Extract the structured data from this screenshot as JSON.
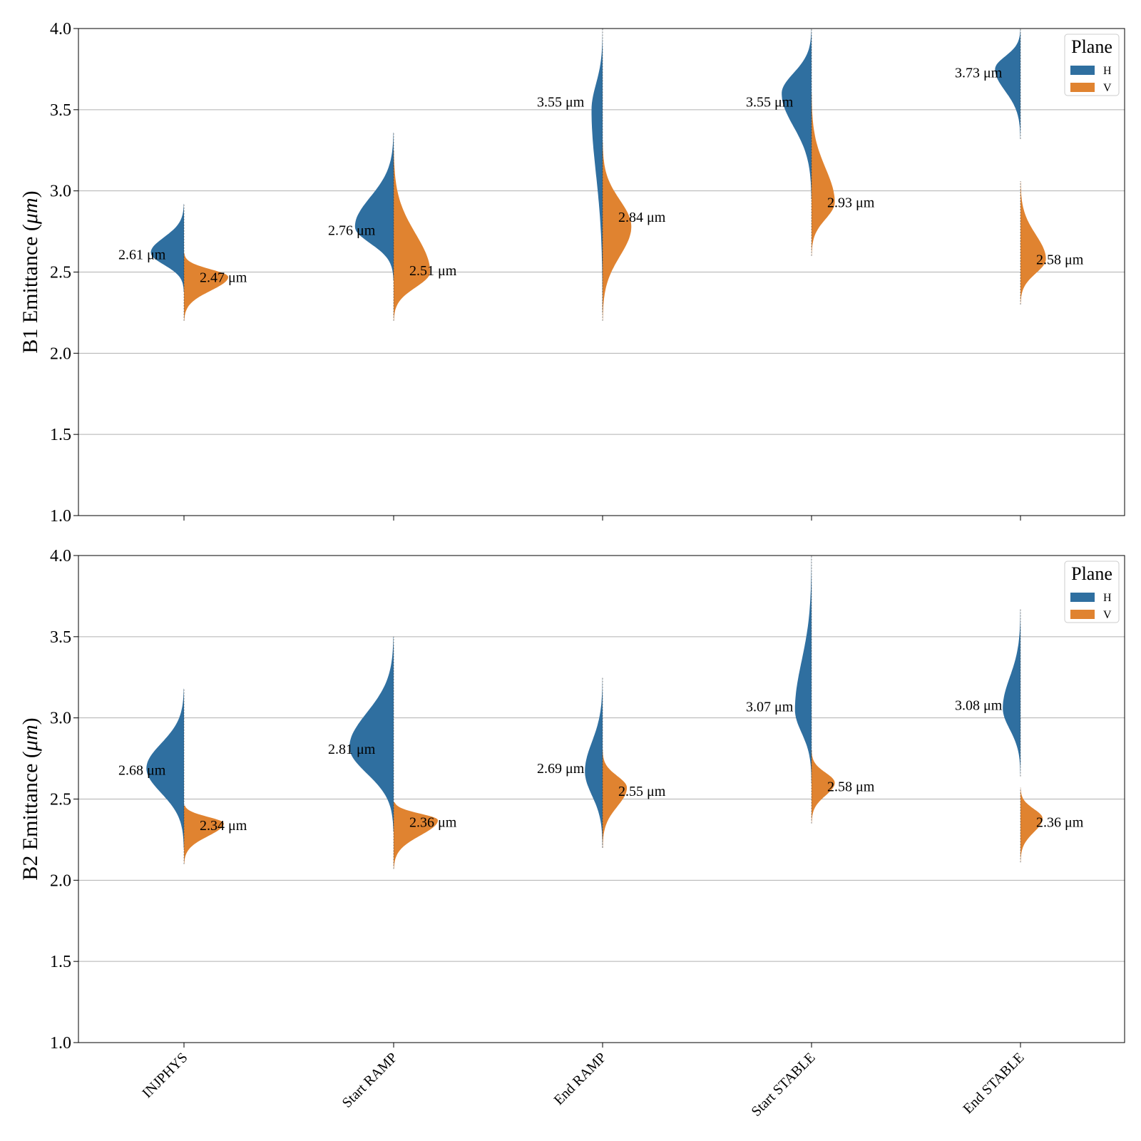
{
  "colors": {
    "H": "#2f6fa0",
    "V": "#e08330",
    "grid": "#b0b0b0",
    "axis": "#000000"
  },
  "chart_data": [
    {
      "type": "violin",
      "panel": "top",
      "ylabel": "B1 Emittance",
      "ylabel_unit": "μm",
      "ylim": [
        1.0,
        4.0
      ],
      "yticks": [
        "1.0",
        "1.5",
        "2.0",
        "2.5",
        "3.0",
        "3.5",
        "4.0"
      ],
      "categories": [
        "INJPHYS",
        "Start RAMP",
        "End RAMP",
        "Start STABLE",
        "End STABLE"
      ],
      "legend": {
        "title": "Plane",
        "placement": "top-right",
        "entries": [
          "H",
          "V"
        ]
      },
      "series": [
        {
          "name": "H",
          "medians": [
            2.61,
            2.76,
            3.55,
            3.55,
            3.73
          ],
          "labels": [
            "2.61 μm",
            "2.76 μm",
            "3.55 μm",
            "3.55 μm",
            "3.73 μm"
          ],
          "ranges": [
            [
              2.38,
              2.92
            ],
            [
              2.45,
              3.36
            ],
            [
              2.25,
              4.0
            ],
            [
              2.95,
              4.0
            ],
            [
              3.32,
              4.0
            ]
          ],
          "peaks": [
            2.62,
            2.78,
            3.5,
            3.6,
            3.75
          ],
          "widths": [
            0.3,
            0.35,
            0.1,
            0.27,
            0.23
          ]
        },
        {
          "name": "V",
          "medians": [
            2.47,
            2.51,
            2.84,
            2.93,
            2.58
          ],
          "labels": [
            "2.47 μm",
            "2.51 μm",
            "2.84 μm",
            "2.93 μm",
            "2.58 μm"
          ],
          "ranges": [
            [
              2.2,
              2.62
            ],
            [
              2.2,
              3.25
            ],
            [
              2.2,
              3.3
            ],
            [
              2.6,
              3.6
            ],
            [
              2.3,
              3.06
            ]
          ],
          "peaks": [
            2.47,
            2.5,
            2.78,
            2.93,
            2.58
          ],
          "widths": [
            0.4,
            0.33,
            0.26,
            0.21,
            0.23
          ]
        }
      ]
    },
    {
      "type": "violin",
      "panel": "bottom",
      "ylabel": "B2 Emittance",
      "ylabel_unit": "μm",
      "ylim": [
        1.0,
        4.0
      ],
      "yticks": [
        "1.0",
        "1.5",
        "2.0",
        "2.5",
        "3.0",
        "3.5",
        "4.0"
      ],
      "categories": [
        "INJPHYS",
        "Start RAMP",
        "End RAMP",
        "Start STABLE",
        "End STABLE"
      ],
      "legend": {
        "title": "Plane",
        "placement": "top-right",
        "entries": [
          "H",
          "V"
        ]
      },
      "series": [
        {
          "name": "H",
          "medians": [
            2.68,
            2.81,
            2.69,
            3.07,
            3.08
          ],
          "labels": [
            "2.68 μm",
            "2.81 μm",
            "2.69 μm",
            "3.07 μm",
            "3.08 μm"
          ],
          "ranges": [
            [
              2.2,
              3.18
            ],
            [
              2.3,
              3.5
            ],
            [
              2.2,
              3.25
            ],
            [
              2.6,
              4.0
            ],
            [
              2.64,
              3.67
            ]
          ],
          "peaks": [
            2.69,
            2.82,
            2.67,
            3.05,
            3.06
          ],
          "widths": [
            0.34,
            0.4,
            0.16,
            0.15,
            0.16
          ]
        },
        {
          "name": "V",
          "medians": [
            2.34,
            2.36,
            2.55,
            2.58,
            2.36
          ],
          "labels": [
            "2.34 μm",
            "2.36 μm",
            "2.55 μm",
            "2.58 μm",
            "2.36 μm"
          ],
          "ranges": [
            [
              2.1,
              2.46
            ],
            [
              2.07,
              2.48
            ],
            [
              2.2,
              2.8
            ],
            [
              2.35,
              2.8
            ],
            [
              2.11,
              2.57
            ]
          ],
          "peaks": [
            2.35,
            2.37,
            2.57,
            2.6,
            2.38
          ],
          "widths": [
            0.36,
            0.4,
            0.22,
            0.21,
            0.2
          ]
        }
      ]
    }
  ]
}
